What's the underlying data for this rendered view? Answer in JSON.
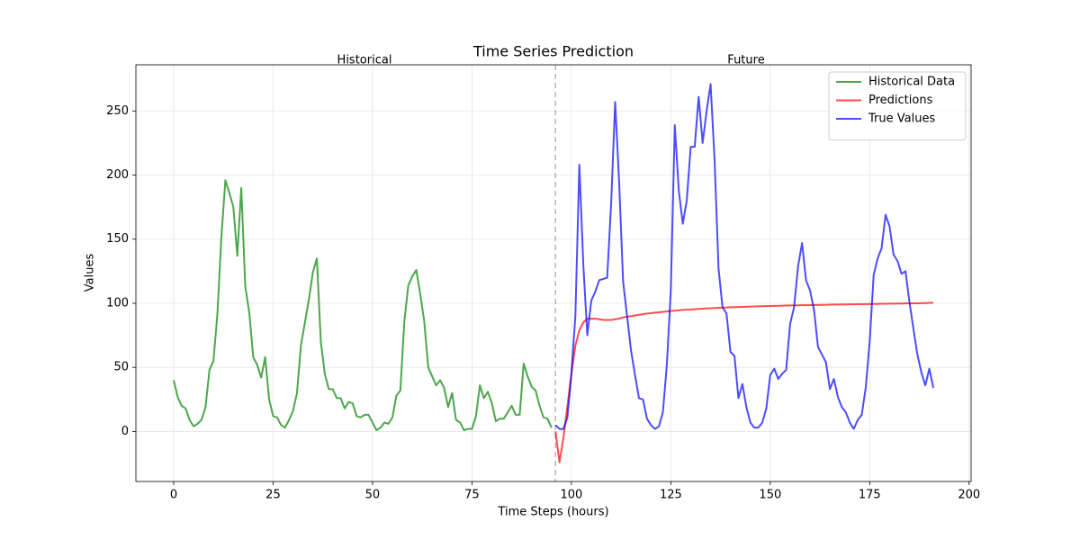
{
  "chart_data": {
    "type": "line",
    "title": "Time Series Prediction",
    "x_label": "Time Steps (hours)",
    "y_label": "Values",
    "annotations": [
      "Historical",
      "Future"
    ],
    "vline": 96,
    "xlim": [
      -9.5,
      200.5
    ],
    "ylim": [
      -39,
      286
    ],
    "xticks": [
      0,
      25,
      50,
      75,
      100,
      125,
      150,
      175,
      200
    ],
    "yticks": [
      0,
      50,
      100,
      150,
      200,
      250
    ],
    "grid": true,
    "legend": "upper right",
    "series": [
      {
        "name": "Historical Data",
        "color": "green",
        "x": [
          0,
          1,
          2,
          3,
          4,
          5,
          6,
          7,
          8,
          9,
          10,
          11,
          12,
          13,
          14,
          15,
          16,
          17,
          18,
          19,
          20,
          21,
          22,
          23,
          24,
          25,
          26,
          27,
          28,
          29,
          30,
          31,
          32,
          33,
          34,
          35,
          36,
          37,
          38,
          39,
          40,
          41,
          42,
          43,
          44,
          45,
          46,
          47,
          48,
          49,
          50,
          51,
          52,
          53,
          54,
          55,
          56,
          57,
          58,
          59,
          60,
          61,
          62,
          63,
          64,
          65,
          66,
          67,
          68,
          69,
          70,
          71,
          72,
          73,
          74,
          75,
          76,
          77,
          78,
          79,
          80,
          81,
          82,
          83,
          84,
          85,
          86,
          87,
          88,
          89,
          90,
          91,
          92,
          93,
          94,
          95
        ],
        "values": [
          40,
          27,
          20,
          18,
          9,
          4,
          6,
          9,
          19,
          48,
          55,
          92,
          152,
          196,
          186,
          175,
          137,
          190,
          113,
          93,
          58,
          52,
          42,
          58,
          25,
          12,
          11,
          5,
          3,
          9,
          16,
          30,
          67,
          85,
          103,
          124,
          135,
          70,
          45,
          33,
          33,
          26,
          26,
          18,
          23,
          22,
          12,
          11,
          13,
          13,
          7,
          1,
          3,
          7,
          6,
          11,
          28,
          32,
          86,
          114,
          121,
          126,
          107,
          86,
          50,
          43,
          36,
          40,
          34,
          19,
          30,
          9,
          7,
          1,
          2,
          2,
          12,
          36,
          26,
          31,
          22,
          8,
          10,
          10,
          15,
          20,
          13,
          13,
          53,
          43,
          35,
          32,
          20,
          11,
          10,
          3
        ]
      },
      {
        "name": "Predictions",
        "color": "red",
        "x": [
          96,
          97,
          98,
          99,
          100,
          101,
          102,
          103,
          104,
          105,
          106,
          107,
          108,
          109,
          110,
          111,
          112,
          113,
          114,
          115,
          116,
          117,
          118,
          119,
          120,
          121,
          122,
          123,
          124,
          125,
          126,
          127,
          128,
          129,
          130,
          131,
          132,
          133,
          134,
          135,
          136,
          137,
          138,
          139,
          140,
          141,
          142,
          143,
          144,
          145,
          146,
          147,
          148,
          149,
          150,
          151,
          152,
          153,
          154,
          155,
          156,
          157,
          158,
          159,
          160,
          161,
          162,
          163,
          164,
          165,
          166,
          167,
          168,
          169,
          170,
          171,
          172,
          173,
          174,
          175,
          176,
          177,
          178,
          179,
          180,
          181,
          182,
          183,
          184,
          185,
          186,
          187,
          188,
          189,
          190,
          191
        ],
        "values": [
          0,
          -24,
          -5,
          20,
          45,
          67,
          79,
          85,
          88,
          88,
          88,
          87.5,
          87,
          87,
          87,
          87.5,
          88,
          89,
          89.5,
          90,
          90.5,
          91,
          91.5,
          92,
          92.3,
          92.7,
          93,
          93.3,
          93.6,
          94,
          94.2,
          94.5,
          94.8,
          95,
          95.2,
          95.4,
          95.6,
          95.8,
          96,
          96.1,
          96.3,
          96.5,
          96.6,
          96.7,
          96.9,
          97,
          97.1,
          97.2,
          97.3,
          97.4,
          97.5,
          97.6,
          97.7,
          97.8,
          97.9,
          98,
          98,
          98.1,
          98.2,
          98.3,
          98.3,
          98.4,
          98.5,
          98.5,
          98.6,
          98.7,
          98.7,
          98.8,
          98.8,
          98.9,
          99,
          99,
          99.1,
          99.1,
          99.2,
          99.2,
          99.3,
          99.3,
          99.4,
          99.4,
          99.5,
          99.5,
          99.6,
          99.6,
          99.7,
          99.7,
          99.8,
          99.8,
          99.9,
          99.9,
          100,
          100,
          100.1,
          100.2,
          100.3,
          100.4
        ]
      },
      {
        "name": "True Values",
        "color": "blue",
        "x": [
          96,
          97,
          98,
          99,
          100,
          101,
          102,
          103,
          104,
          105,
          106,
          107,
          108,
          109,
          110,
          111,
          112,
          113,
          114,
          115,
          116,
          117,
          118,
          119,
          120,
          121,
          122,
          123,
          124,
          125,
          126,
          127,
          128,
          129,
          130,
          131,
          132,
          133,
          134,
          135,
          136,
          137,
          138,
          139,
          140,
          141,
          142,
          143,
          144,
          145,
          146,
          147,
          148,
          149,
          150,
          151,
          152,
          153,
          154,
          155,
          156,
          157,
          158,
          159,
          160,
          161,
          162,
          163,
          164,
          165,
          166,
          167,
          168,
          169,
          170,
          171,
          172,
          173,
          174,
          175,
          176,
          177,
          178,
          179,
          180,
          181,
          182,
          183,
          184,
          185,
          186,
          187,
          188,
          189,
          190,
          191
        ],
        "values": [
          5,
          2,
          2,
          11,
          45,
          90,
          208,
          130,
          75,
          102,
          109,
          118,
          119,
          120,
          178,
          257,
          195,
          117,
          90,
          63,
          44,
          26,
          25,
          10,
          5,
          2,
          4,
          15,
          52,
          110,
          239,
          188,
          162,
          180,
          222,
          222,
          261,
          225,
          250,
          271,
          212,
          127,
          97,
          92,
          62,
          59,
          26,
          37,
          19,
          7,
          3,
          3,
          7,
          18,
          44,
          49,
          41,
          45,
          48,
          84,
          97,
          129,
          147,
          118,
          110,
          95,
          66,
          60,
          54,
          33,
          41,
          27,
          19,
          15,
          7,
          2,
          9,
          13,
          34,
          70,
          122,
          135,
          143,
          169,
          160,
          138,
          133,
          123,
          125,
          101,
          80,
          60,
          46,
          36,
          49,
          34
        ]
      }
    ]
  }
}
